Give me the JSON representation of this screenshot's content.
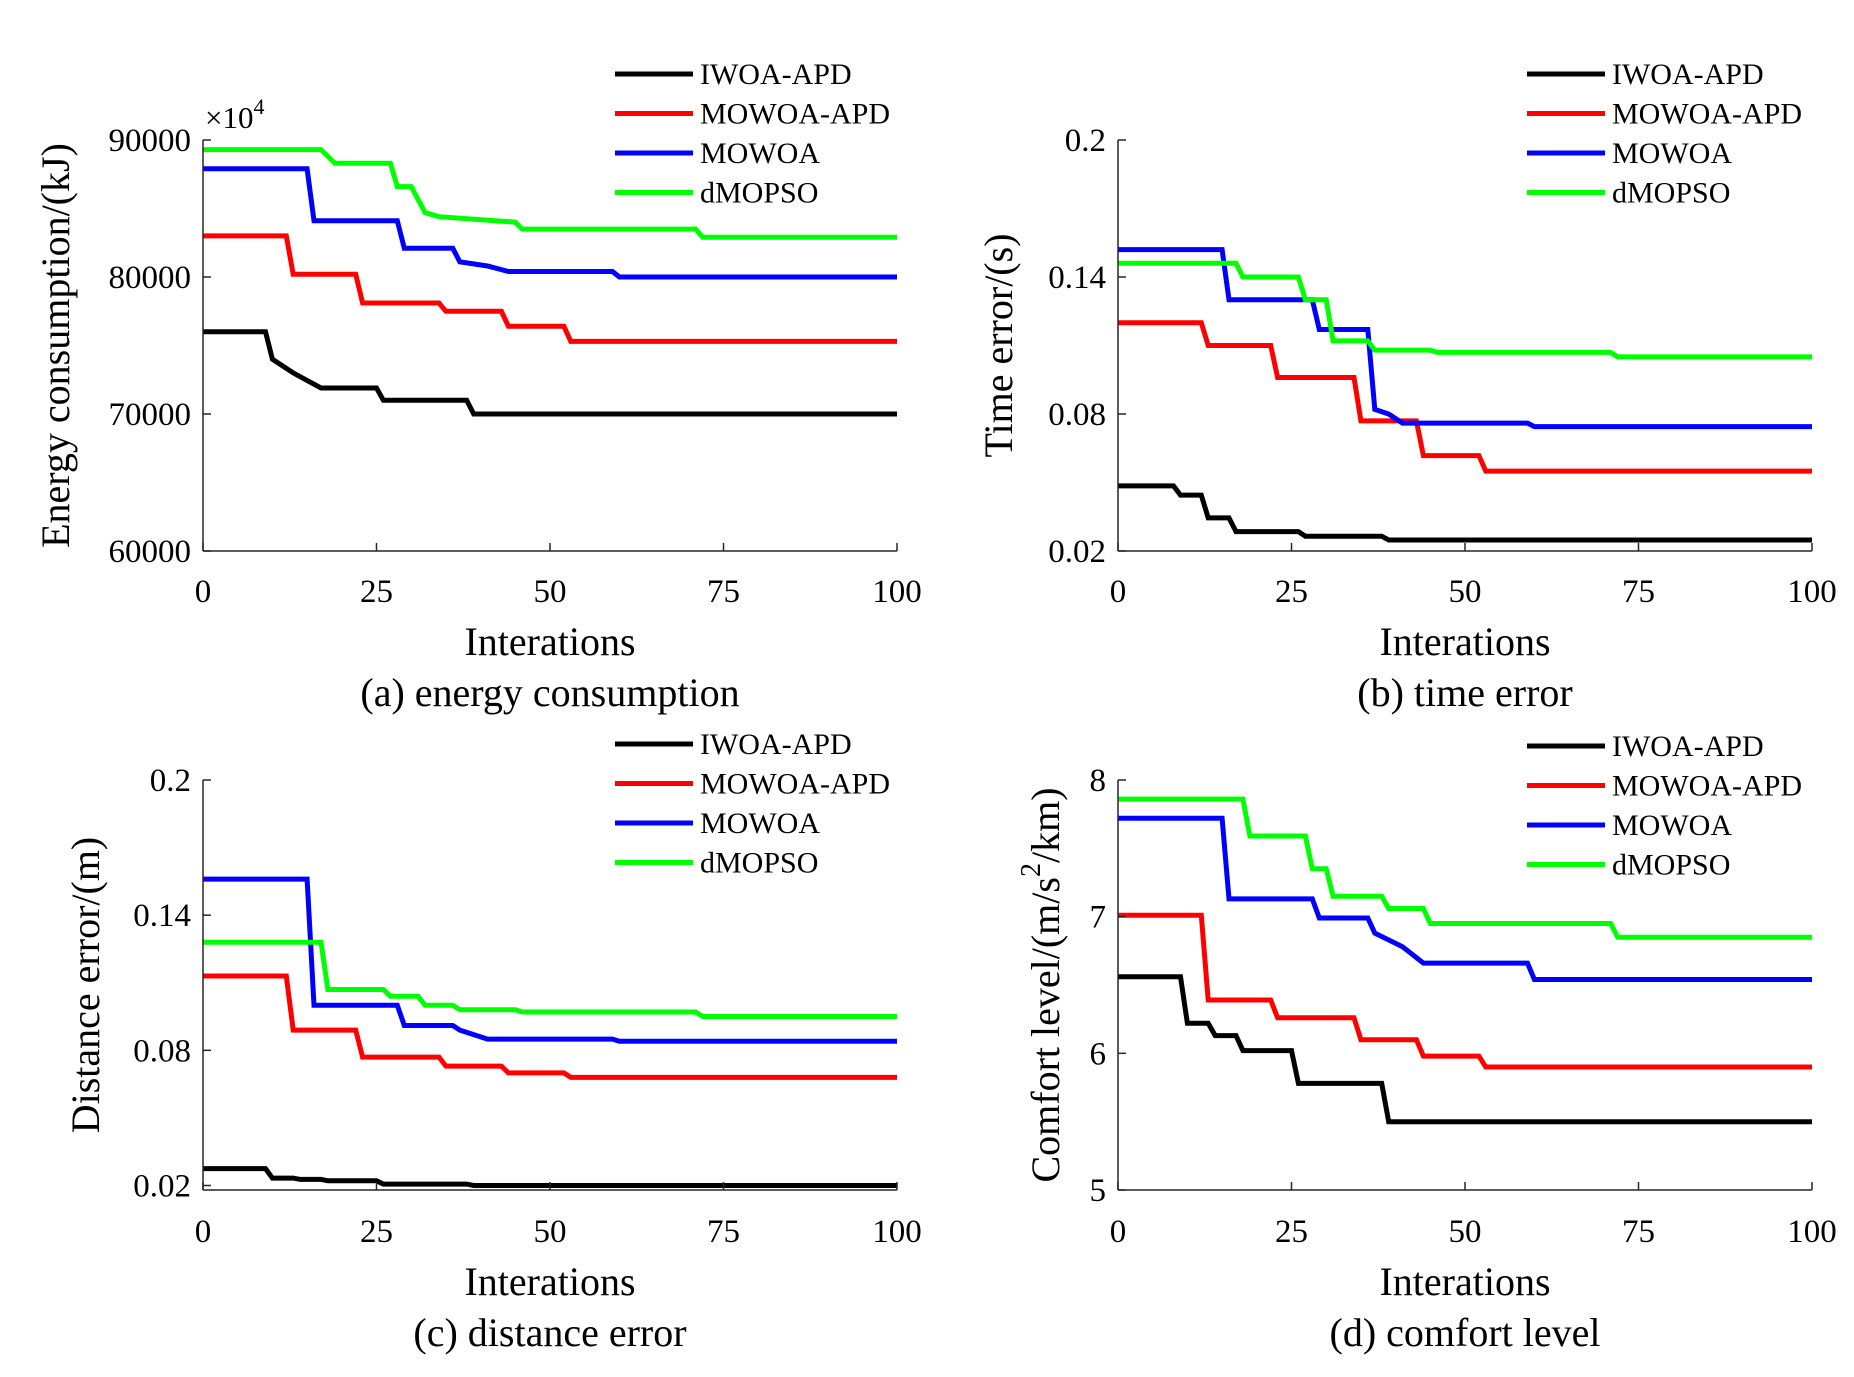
{
  "colors": {
    "IWOA-APD": "#000000",
    "MOWOA-APD": "#ff0000",
    "MOWOA": "#0000ff",
    "dMOPSO": "#00ff00"
  },
  "chart_data": [
    {
      "type": "line",
      "caption": "(a) energy consumption",
      "xlabel": "Interations",
      "ylabel": "Energy consumption/(kJ)",
      "multiplier": "×10",
      "multiplier_exp": "4",
      "xlim": [
        0,
        100
      ],
      "ylim": [
        60000,
        90000
      ],
      "xticks": [
        0,
        25,
        50,
        75,
        100
      ],
      "xtick_labels": [
        "0",
        "25",
        "50",
        "75",
        "100"
      ],
      "yticks": [
        60000,
        70000,
        80000,
        90000
      ],
      "ytick_labels": [
        "60000",
        "70000",
        "80000",
        "90000"
      ],
      "legend": "top-right",
      "series": [
        {
          "name": "IWOA-APD",
          "x": [
            0,
            9,
            10,
            13,
            17,
            25,
            26,
            38,
            39,
            100
          ],
          "y": [
            76000,
            76000,
            74000,
            73000,
            71900,
            71900,
            71000,
            71000,
            70000,
            70000
          ]
        },
        {
          "name": "MOWOA-APD",
          "x": [
            0,
            12,
            13,
            22,
            23,
            34,
            35,
            43,
            44,
            52,
            53,
            100
          ],
          "y": [
            83000,
            83000,
            80200,
            80200,
            78100,
            78100,
            77500,
            77500,
            76400,
            76400,
            75300,
            75300
          ]
        },
        {
          "name": "MOWOA",
          "x": [
            0,
            15,
            16,
            28,
            29,
            36,
            37,
            41,
            44,
            59,
            60,
            100
          ],
          "y": [
            87900,
            87900,
            84100,
            84100,
            82100,
            82100,
            81100,
            80800,
            80400,
            80400,
            80000,
            80000
          ]
        },
        {
          "name": "dMOPSO",
          "x": [
            0,
            17,
            19,
            27,
            28,
            30,
            32,
            34,
            45,
            46,
            71,
            72,
            100
          ],
          "y": [
            89300,
            89300,
            88300,
            88300,
            86600,
            86600,
            84700,
            84400,
            84000,
            83500,
            83500,
            82900,
            82900
          ]
        }
      ]
    },
    {
      "type": "line",
      "caption": "(b) time error",
      "xlabel": "Interations",
      "ylabel": "Time error/(s)",
      "xlim": [
        0,
        100
      ],
      "ylim": [
        0.02,
        0.2
      ],
      "xticks": [
        0,
        25,
        50,
        75,
        100
      ],
      "xtick_labels": [
        "0",
        "25",
        "50",
        "75",
        "100"
      ],
      "yticks": [
        0.02,
        0.08,
        0.14,
        0.2
      ],
      "ytick_labels": [
        "0.02",
        "0.08",
        "0.14",
        "0.2"
      ],
      "legend": "top-right",
      "series": [
        {
          "name": "IWOA-APD",
          "x": [
            0,
            8,
            9,
            12,
            13,
            16,
            17,
            26,
            27,
            38,
            39,
            100
          ],
          "y": [
            0.0485,
            0.0485,
            0.0445,
            0.0445,
            0.0345,
            0.0345,
            0.0285,
            0.0285,
            0.0265,
            0.0265,
            0.0248,
            0.0248
          ]
        },
        {
          "name": "MOWOA-APD",
          "x": [
            0,
            12,
            13,
            22,
            23,
            34,
            35,
            43,
            44,
            52,
            53,
            100
          ],
          "y": [
            0.12,
            0.12,
            0.11,
            0.11,
            0.096,
            0.096,
            0.077,
            0.077,
            0.0618,
            0.0618,
            0.055,
            0.055
          ]
        },
        {
          "name": "MOWOA",
          "x": [
            0,
            15,
            16,
            28,
            29,
            36,
            37,
            39,
            41,
            59,
            60,
            100
          ],
          "y": [
            0.152,
            0.152,
            0.13,
            0.13,
            0.117,
            0.117,
            0.082,
            0.08,
            0.076,
            0.076,
            0.0745,
            0.0745
          ]
        },
        {
          "name": "dMOPSO",
          "x": [
            0,
            17,
            18,
            26,
            27,
            30,
            31,
            36,
            37,
            45,
            46,
            71,
            72,
            100
          ],
          "y": [
            0.146,
            0.146,
            0.14,
            0.14,
            0.13,
            0.13,
            0.112,
            0.112,
            0.108,
            0.108,
            0.107,
            0.107,
            0.105,
            0.105
          ]
        }
      ]
    },
    {
      "type": "line",
      "caption": "(c) distance error",
      "xlabel": "Interations",
      "ylabel": "Distance error/(m)",
      "xlim": [
        0,
        100
      ],
      "ylim": [
        0.018,
        0.2
      ],
      "xticks": [
        0,
        25,
        50,
        75,
        100
      ],
      "xtick_labels": [
        "0",
        "25",
        "50",
        "75",
        "100"
      ],
      "yticks": [
        0.02,
        0.08,
        0.14,
        0.2
      ],
      "ytick_labels": [
        "0.02",
        "0.08",
        "0.14",
        "0.2"
      ],
      "legend": "top-right",
      "series": [
        {
          "name": "IWOA-APD",
          "x": [
            0,
            9,
            10,
            13,
            14,
            17,
            18,
            25,
            26,
            38,
            39,
            100
          ],
          "y": [
            0.0275,
            0.0275,
            0.0233,
            0.0233,
            0.0227,
            0.0227,
            0.0221,
            0.0221,
            0.0206,
            0.0206,
            0.02,
            0.02
          ]
        },
        {
          "name": "MOWOA-APD",
          "x": [
            0,
            12,
            13,
            22,
            23,
            34,
            35,
            43,
            44,
            52,
            53,
            100
          ],
          "y": [
            0.113,
            0.113,
            0.089,
            0.089,
            0.077,
            0.077,
            0.073,
            0.073,
            0.07,
            0.07,
            0.068,
            0.068
          ]
        },
        {
          "name": "MOWOA",
          "x": [
            0,
            15,
            16,
            28,
            29,
            36,
            37,
            39,
            41,
            59,
            60,
            100
          ],
          "y": [
            0.156,
            0.156,
            0.1,
            0.1,
            0.091,
            0.091,
            0.089,
            0.087,
            0.085,
            0.085,
            0.084,
            0.084
          ]
        },
        {
          "name": "dMOPSO",
          "x": [
            0,
            17,
            18,
            26,
            27,
            31,
            32,
            36,
            37,
            45,
            46,
            71,
            72,
            100
          ],
          "y": [
            0.128,
            0.128,
            0.107,
            0.107,
            0.104,
            0.104,
            0.1,
            0.1,
            0.098,
            0.098,
            0.097,
            0.097,
            0.095,
            0.095
          ]
        }
      ]
    },
    {
      "type": "line",
      "caption": "(d) comfort level",
      "xlabel": "Interations",
      "ylabel_pre": "Comfort level/(m/s",
      "ylabel_sup": "2",
      "ylabel_post": "/km)",
      "xlim": [
        0,
        100
      ],
      "ylim": [
        5,
        8
      ],
      "xticks": [
        0,
        25,
        50,
        75,
        100
      ],
      "xtick_labels": [
        "0",
        "25",
        "50",
        "75",
        "100"
      ],
      "yticks": [
        5,
        6,
        7,
        8
      ],
      "ytick_labels": [
        "5",
        "6",
        "7",
        "8"
      ],
      "legend": "top-right",
      "series": [
        {
          "name": "IWOA-APD",
          "x": [
            0,
            9,
            10,
            13,
            14,
            17,
            18,
            25,
            26,
            38,
            39,
            100
          ],
          "y": [
            6.56,
            6.56,
            6.22,
            6.22,
            6.13,
            6.13,
            6.02,
            6.02,
            5.78,
            5.78,
            5.5,
            5.5
          ]
        },
        {
          "name": "MOWOA-APD",
          "x": [
            0,
            12,
            13,
            22,
            23,
            34,
            35,
            43,
            44,
            52,
            53,
            100
          ],
          "y": [
            7.01,
            7.01,
            6.39,
            6.39,
            6.26,
            6.26,
            6.1,
            6.1,
            5.98,
            5.98,
            5.9,
            5.9
          ]
        },
        {
          "name": "MOWOA",
          "x": [
            0,
            15,
            16,
            28,
            29,
            36,
            37,
            41,
            44,
            59,
            60,
            100
          ],
          "y": [
            7.72,
            7.72,
            7.13,
            7.13,
            6.99,
            6.99,
            6.88,
            6.78,
            6.66,
            6.66,
            6.54,
            6.54
          ]
        },
        {
          "name": "dMOPSO",
          "x": [
            0,
            18,
            19,
            27,
            28,
            30,
            31,
            38,
            39,
            44,
            45,
            71,
            72,
            100
          ],
          "y": [
            7.86,
            7.86,
            7.59,
            7.59,
            7.35,
            7.35,
            7.15,
            7.15,
            7.06,
            7.06,
            6.95,
            6.95,
            6.85,
            6.85
          ]
        }
      ]
    }
  ]
}
